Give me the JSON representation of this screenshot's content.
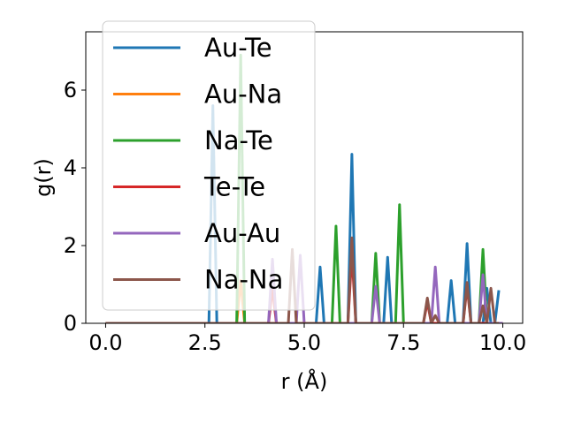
{
  "chart_data": {
    "type": "line",
    "xlabel": "r (Å)",
    "ylabel": "g(r)",
    "xlim": [
      -0.5,
      10.5
    ],
    "ylim": [
      0,
      7.5
    ],
    "xticks": [
      0.0,
      2.5,
      5.0,
      7.5,
      10.0
    ],
    "xtick_labels": [
      "0.0",
      "2.5",
      "5.0",
      "7.5",
      "10.0"
    ],
    "yticks": [
      0,
      2,
      4,
      6
    ],
    "ytick_labels": [
      "0",
      "2",
      "4",
      "6"
    ],
    "legend_position": "top-left",
    "grid": false,
    "series": [
      {
        "name": "Au-Te",
        "color": "#1f77b4",
        "x": [
          0.0,
          2.6,
          2.7,
          2.8,
          5.3,
          5.4,
          5.5,
          6.1,
          6.2,
          6.3,
          7.0,
          7.1,
          7.2,
          8.6,
          8.7,
          8.8,
          9.0,
          9.1,
          9.2,
          9.5,
          9.6,
          9.7,
          9.8,
          9.9
        ],
        "y": [
          0,
          0,
          5.6,
          0,
          0,
          1.45,
          0,
          0,
          4.35,
          0,
          0,
          1.7,
          0,
          0,
          1.1,
          0,
          0,
          2.05,
          0,
          0,
          0.9,
          0,
          0,
          0.85
        ]
      },
      {
        "name": "Au-Na",
        "color": "#ff7f0e",
        "x": [
          0.0,
          3.3,
          3.4,
          3.5,
          10.0
        ],
        "y": [
          0,
          0,
          1.1,
          0,
          0
        ]
      },
      {
        "name": "Na-Te",
        "color": "#2ca02c",
        "x": [
          0.0,
          3.3,
          3.4,
          3.5,
          5.7,
          5.8,
          5.9,
          6.7,
          6.8,
          6.9,
          7.3,
          7.4,
          7.5,
          9.4,
          9.5,
          9.6,
          9.7
        ],
        "y": [
          0,
          0,
          6.9,
          0,
          0,
          2.5,
          0,
          0,
          1.8,
          0,
          0,
          3.05,
          0,
          0,
          1.9,
          0,
          0
        ]
      },
      {
        "name": "Te-Te",
        "color": "#d62728",
        "x": [
          0.0,
          4.1,
          4.2,
          4.3,
          6.1,
          6.2,
          6.3,
          8.0,
          8.1,
          8.2,
          9.0,
          9.1,
          9.2,
          10.0
        ],
        "y": [
          0,
          0,
          0.9,
          0,
          0,
          1.8,
          0,
          0,
          0.55,
          0,
          0,
          0.95,
          0,
          0
        ]
      },
      {
        "name": "Au-Au",
        "color": "#9467bd",
        "x": [
          0.0,
          4.1,
          4.2,
          4.3,
          4.8,
          4.9,
          5.0,
          6.7,
          6.8,
          6.9,
          8.2,
          8.3,
          8.4,
          9.4,
          9.5,
          9.6,
          10.0
        ],
        "y": [
          0,
          0,
          1.65,
          0,
          0,
          1.75,
          0,
          0,
          0.95,
          0,
          0,
          1.45,
          0,
          0,
          1.25,
          0,
          0
        ]
      },
      {
        "name": "Na-Na",
        "color": "#8c564b",
        "x": [
          0.0,
          4.6,
          4.7,
          4.8,
          6.1,
          6.2,
          6.3,
          8.0,
          8.1,
          8.2,
          8.3,
          8.4,
          9.0,
          9.1,
          9.2,
          9.4,
          9.5,
          9.6,
          9.7,
          9.8,
          9.9
        ],
        "y": [
          0,
          0,
          1.9,
          0,
          0,
          2.2,
          0,
          0,
          0.65,
          0,
          0.2,
          0,
          0,
          1.05,
          0,
          0,
          0.45,
          0,
          0.9,
          0,
          0
        ]
      }
    ]
  }
}
